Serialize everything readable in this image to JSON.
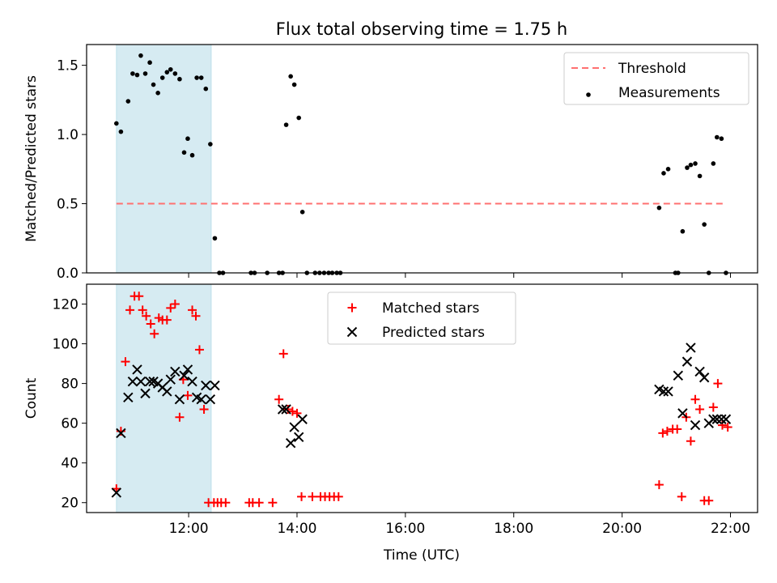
{
  "chart_data": {
    "title": "Flux total observing time = 1.75 h",
    "xlabel": "Time (UTC)",
    "x_unit": "hours UTC",
    "xlim": [
      "10:07",
      "22:30"
    ],
    "x_ticks": [
      "12:00",
      "14:00",
      "16:00",
      "18:00",
      "20:00",
      "22:00"
    ],
    "highlight_span": [
      "10:40",
      "12:25"
    ],
    "highlight_color": "#add8e6",
    "panels": [
      {
        "type": "scatter",
        "ylabel": "Matched/Predicted stars",
        "ylim": [
          0,
          1.65
        ],
        "y_ticks": [
          "0.0",
          "0.5",
          "1.0",
          "1.5"
        ],
        "legend_position": "top-right",
        "series": [
          {
            "name": "Threshold",
            "style": "dashed-line",
            "color": "#ff7070",
            "x": [
              "10:40",
              "21:55"
            ],
            "y": [
              0.5,
              0.5
            ]
          },
          {
            "name": "Measurements",
            "style": "dot",
            "color": "#000000",
            "x": [
              "10:40",
              "10:45",
              "10:53",
              "10:58",
              "11:03",
              "11:07",
              "11:12",
              "11:17",
              "11:21",
              "11:26",
              "11:31",
              "11:36",
              "11:40",
              "11:45",
              "11:50",
              "11:55",
              "11:59",
              "12:04",
              "12:09",
              "12:14",
              "12:19",
              "12:24",
              "12:29",
              "12:34",
              "12:38",
              "13:09",
              "13:13",
              "13:27",
              "13:40",
              "13:44",
              "13:48",
              "13:53",
              "13:57",
              "14:02",
              "14:06",
              "14:11",
              "14:20",
              "14:25",
              "14:30",
              "14:35",
              "14:39",
              "14:44",
              "14:48",
              "20:41",
              "20:46",
              "20:51",
              "20:59",
              "21:02",
              "21:07",
              "21:12",
              "21:16",
              "21:21",
              "21:26",
              "21:31",
              "21:36",
              "21:41",
              "21:45",
              "21:50",
              "21:55"
            ],
            "y": [
              1.08,
              1.02,
              1.24,
              1.44,
              1.43,
              1.57,
              1.44,
              1.52,
              1.36,
              1.3,
              1.41,
              1.45,
              1.47,
              1.44,
              1.4,
              0.87,
              0.97,
              0.85,
              1.41,
              1.41,
              1.33,
              0.93,
              0.25,
              0,
              0,
              0,
              0,
              0,
              0,
              0,
              1.07,
              1.42,
              1.36,
              1.12,
              0.44,
              0,
              0,
              0,
              0,
              0,
              0,
              0,
              0,
              0.47,
              0.72,
              0.75,
              0,
              0,
              0.3,
              0.76,
              0.78,
              0.79,
              0.7,
              0.35,
              0,
              0.79,
              0.98,
              0.97,
              0
            ]
          }
        ]
      },
      {
        "type": "scatter",
        "ylabel": "Count",
        "ylim": [
          15,
          130
        ],
        "y_ticks": [
          "20",
          "40",
          "60",
          "80",
          "100",
          "120"
        ],
        "legend_position": "top-center",
        "series": [
          {
            "name": "Matched stars",
            "marker": "plus",
            "color": "#ff0000",
            "x": [
              "10:40",
              "10:45",
              "10:50",
              "10:55",
              "11:00",
              "11:05",
              "11:09",
              "11:13",
              "11:18",
              "11:22",
              "11:27",
              "11:31",
              "11:36",
              "11:40",
              "11:45",
              "11:50",
              "11:54",
              "11:59",
              "12:04",
              "12:08",
              "12:12",
              "12:17",
              "12:22",
              "12:28",
              "12:32",
              "12:36",
              "12:41",
              "13:07",
              "13:11",
              "13:18",
              "13:33",
              "13:40",
              "13:45",
              "13:50",
              "13:55",
              "14:00",
              "14:05",
              "14:17",
              "14:26",
              "14:31",
              "14:36",
              "14:41",
              "14:46",
              "20:41",
              "20:45",
              "20:50",
              "20:56",
              "21:01",
              "21:06",
              "21:11",
              "21:16",
              "21:21",
              "21:26",
              "21:31",
              "21:36",
              "21:41",
              "21:46",
              "21:51",
              "21:57"
            ],
            "y": [
              27,
              56,
              91,
              117,
              124,
              124,
              117,
              114,
              110,
              105,
              113,
              112,
              112,
              118,
              120,
              63,
              82,
              74,
              117,
              114,
              97,
              67,
              20,
              20,
              20,
              20,
              20,
              20,
              20,
              20,
              20,
              72,
              95,
              67,
              66,
              65,
              23,
              23,
              23,
              23,
              23,
              23,
              23,
              29,
              55,
              56,
              57,
              57,
              23,
              63,
              51,
              72,
              67,
              21,
              21,
              68,
              80,
              59,
              58
            ]
          },
          {
            "name": "Predicted stars",
            "marker": "x",
            "color": "#000000",
            "x": [
              "10:40",
              "10:45",
              "10:53",
              "10:58",
              "11:03",
              "11:07",
              "11:12",
              "11:17",
              "11:21",
              "11:26",
              "11:31",
              "11:36",
              "11:40",
              "11:45",
              "11:50",
              "11:55",
              "11:59",
              "12:04",
              "12:09",
              "12:14",
              "12:19",
              "12:24",
              "12:29",
              "13:44",
              "13:48",
              "13:53",
              "13:57",
              "14:02",
              "14:06",
              "20:41",
              "20:46",
              "20:51",
              "21:02",
              "21:07",
              "21:12",
              "21:16",
              "21:21",
              "21:26",
              "21:31",
              "21:36",
              "21:41",
              "21:45",
              "21:50",
              "21:55"
            ],
            "y": [
              25,
              55,
              73,
              81,
              87,
              81,
              75,
              81,
              81,
              80,
              78,
              76,
              82,
              86,
              72,
              84,
              87,
              81,
              73,
              72,
              79,
              72,
              79,
              67,
              67,
              50,
              58,
              53,
              62,
              77,
              76,
              76,
              84,
              65,
              91,
              98,
              59,
              86,
              83,
              60,
              62,
              62,
              62,
              62
            ]
          }
        ]
      }
    ]
  }
}
